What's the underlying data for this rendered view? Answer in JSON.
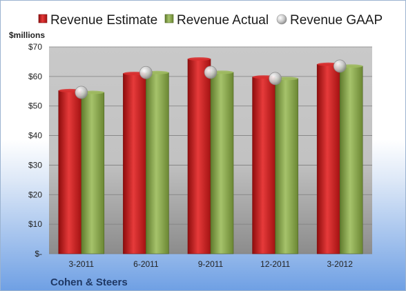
{
  "chart_data": {
    "type": "bar",
    "unit_label": "$millions",
    "company": "Cohen & Steers",
    "categories": [
      "3-2011",
      "6-2011",
      "9-2011",
      "12-2011",
      "3-2012"
    ],
    "y_ticks": [
      "$-",
      "$10",
      "$20",
      "$30",
      "$40",
      "$50",
      "$60",
      "$70"
    ],
    "ylim": [
      0,
      70
    ],
    "grid": true,
    "legend_position": "top",
    "series": [
      {
        "name": "Revenue Estimate",
        "kind": "bar",
        "color": "#cc1f1f",
        "values": [
          55.2,
          61.0,
          65.9,
          59.8,
          64.1
        ]
      },
      {
        "name": "Revenue Actual",
        "kind": "bar",
        "color": "#8aa84a",
        "values": [
          54.6,
          61.3,
          61.4,
          59.3,
          63.5
        ]
      },
      {
        "name": "Revenue GAAP",
        "kind": "marker",
        "color": "#c0c0c0",
        "values": [
          54.6,
          61.3,
          61.4,
          59.3,
          63.5
        ]
      }
    ]
  }
}
